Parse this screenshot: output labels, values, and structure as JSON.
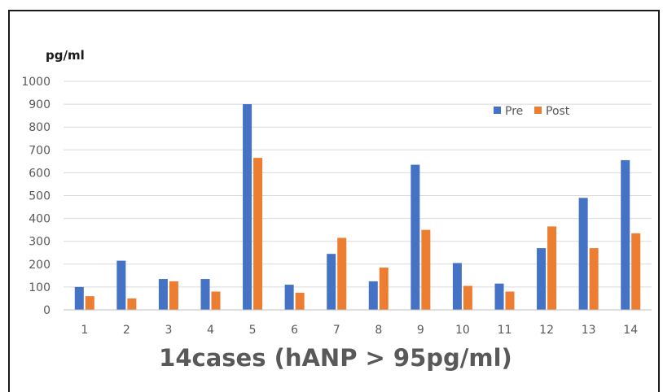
{
  "chart_data": {
    "type": "bar",
    "unit_label": "pg/ml",
    "caption": "14cases (hANP > 95pg/ml)",
    "categories": [
      "1",
      "2",
      "3",
      "4",
      "5",
      "6",
      "7",
      "8",
      "9",
      "10",
      "11",
      "12",
      "13",
      "14"
    ],
    "series": [
      {
        "name": "Pre",
        "color": "#4472c4",
        "values": [
          100,
          215,
          135,
          135,
          900,
          110,
          245,
          125,
          635,
          205,
          115,
          270,
          490,
          655
        ]
      },
      {
        "name": "Post",
        "color": "#ed7d31",
        "values": [
          60,
          50,
          125,
          80,
          665,
          75,
          315,
          185,
          350,
          105,
          80,
          365,
          270,
          335
        ]
      }
    ],
    "ylim": [
      0,
      1000
    ],
    "yticks": [
      "0",
      "100",
      "200",
      "300",
      "400",
      "500",
      "600",
      "700",
      "800",
      "900",
      "1000"
    ],
    "grid": true,
    "legend_position": "top-right"
  }
}
